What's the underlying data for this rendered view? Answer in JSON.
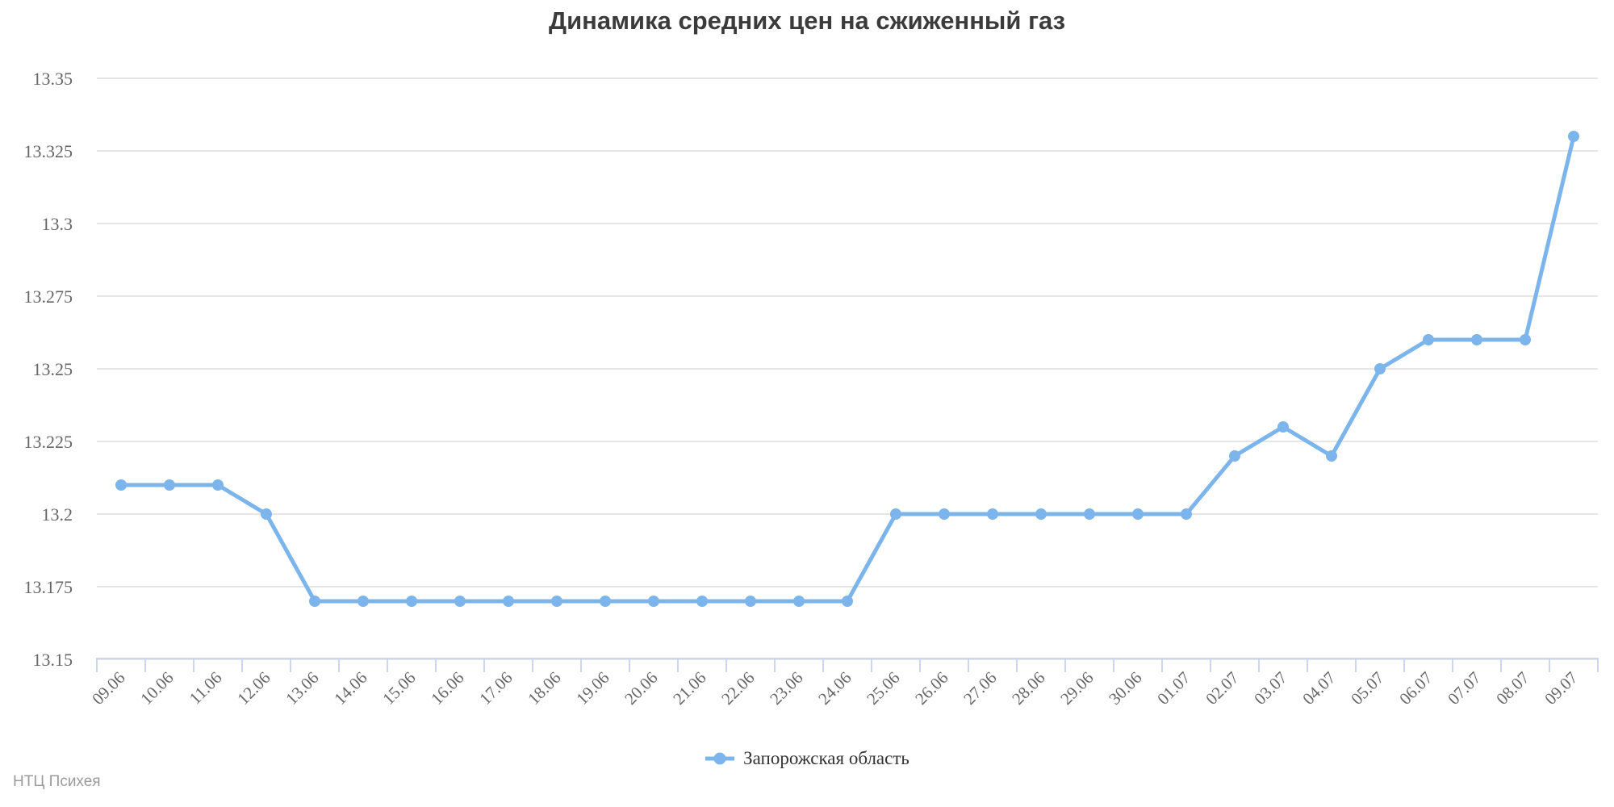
{
  "title": "Динамика средних цен на сжиженный газ",
  "credits": {
    "text": "НТЦ Психея"
  },
  "legend": {
    "series_label": "Запорожская область"
  },
  "colors": {
    "series": "#7cb5ec",
    "grid": "#e6e6e6",
    "axis_line": "#ccd6eb",
    "title_text": "#3b3b3b",
    "axis_label_text": "#666666",
    "legend_text": "#333333",
    "credits_text": "#9b9b9b",
    "background": "#ffffff"
  },
  "chart_data": {
    "type": "line",
    "title": "Динамика средних цен на сжиженный газ",
    "xlabel": "",
    "ylabel": "",
    "ylim": [
      13.15,
      13.35
    ],
    "grid": true,
    "legend_position": "bottom",
    "y_ticks": [
      13.15,
      13.175,
      13.2,
      13.225,
      13.25,
      13.275,
      13.3,
      13.325,
      13.35
    ],
    "y_tick_labels": [
      "13.15",
      "13.175",
      "13.2",
      "13.225",
      "13.25",
      "13.275",
      "13.3",
      "13.325",
      "13.35"
    ],
    "categories": [
      "09.06",
      "10.06",
      "11.06",
      "12.06",
      "13.06",
      "14.06",
      "15.06",
      "16.06",
      "17.06",
      "18.06",
      "19.06",
      "20.06",
      "21.06",
      "22.06",
      "23.06",
      "24.06",
      "25.06",
      "26.06",
      "27.06",
      "28.06",
      "29.06",
      "30.06",
      "01.07",
      "02.07",
      "03.07",
      "04.07",
      "05.07",
      "06.07",
      "07.07",
      "08.07",
      "09.07"
    ],
    "series": [
      {
        "name": "Запорожская область",
        "values": [
          13.21,
          13.21,
          13.21,
          13.2,
          13.17,
          13.17,
          13.17,
          13.17,
          13.17,
          13.17,
          13.17,
          13.17,
          13.17,
          13.17,
          13.17,
          13.17,
          13.2,
          13.2,
          13.2,
          13.2,
          13.2,
          13.2,
          13.2,
          13.22,
          13.23,
          13.22,
          13.25,
          13.26,
          13.26,
          13.26,
          13.33
        ]
      }
    ]
  }
}
